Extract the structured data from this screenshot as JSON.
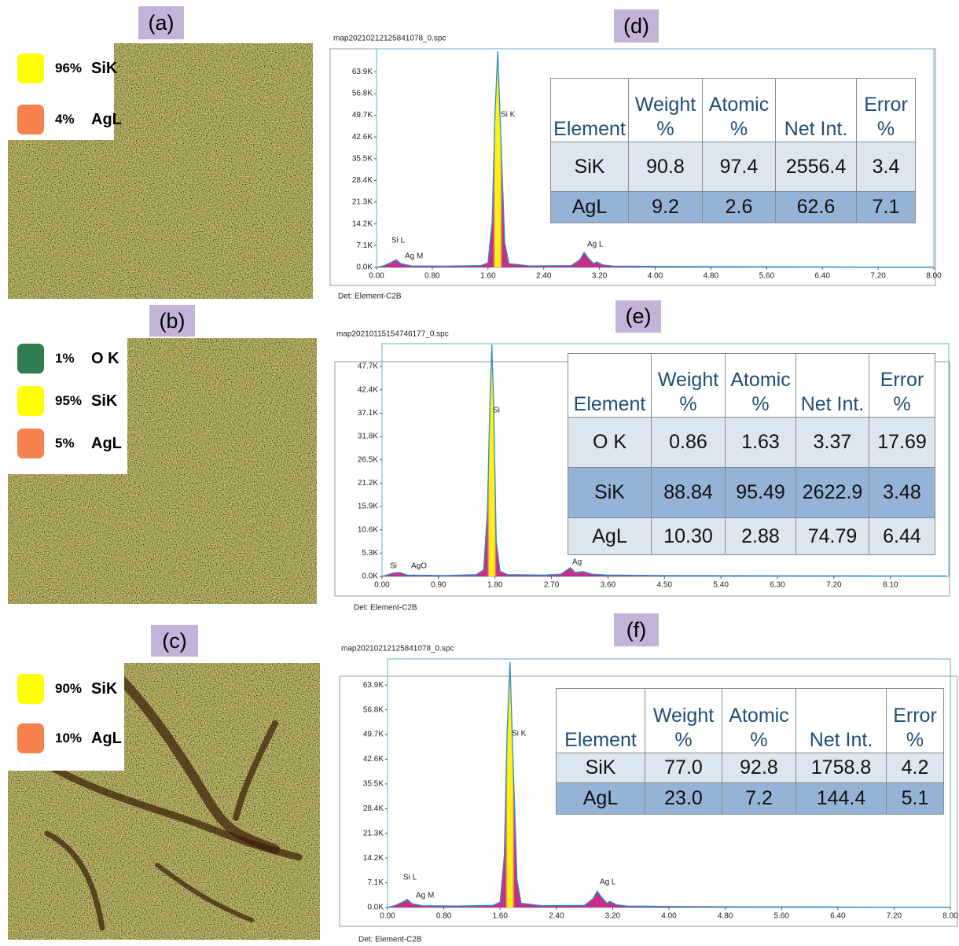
{
  "panels": [
    {
      "label": "(a)",
      "legend": [
        {
          "percent": "96%",
          "element": "SiK",
          "color": "#ffff00"
        },
        {
          "percent": "4%",
          "element": "AgL",
          "color": "#f7804f"
        }
      ]
    },
    {
      "label": "(b)",
      "legend": [
        {
          "percent": "1%",
          "element": "O K",
          "color": "#2e7d4f"
        },
        {
          "percent": "95%",
          "element": "SiK",
          "color": "#ffff00"
        },
        {
          "percent": "5%",
          "element": "AgL",
          "color": "#f7804f"
        }
      ]
    },
    {
      "label": "(c)",
      "legend": [
        {
          "percent": "90%",
          "element": "SiK",
          "color": "#ffff00"
        },
        {
          "percent": "10%",
          "element": "AgL",
          "color": "#f7804f"
        }
      ]
    }
  ],
  "chart_data": [
    {
      "type": "line",
      "label": "(d)",
      "title": "map20210212125841078_0.spc",
      "footer": "Det: Element-C2B",
      "color": "#2a8fc4",
      "fill": "#c2187a",
      "x": [
        0,
        0.1,
        0.2,
        0.28,
        0.35,
        0.5,
        1.0,
        1.5,
        1.6,
        1.66,
        1.7,
        1.74,
        1.78,
        1.84,
        1.9,
        2.2,
        2.8,
        2.92,
        2.98,
        3.04,
        3.12,
        3.16,
        3.25,
        3.4,
        4.0,
        5.0,
        6.0,
        7.0,
        8.0
      ],
      "values": [
        0,
        500,
        1500,
        2500,
        1200,
        500,
        400,
        600,
        1500,
        15000,
        50000,
        70600,
        45000,
        8000,
        1200,
        500,
        600,
        2500,
        4900,
        3000,
        1200,
        1800,
        800,
        400,
        300,
        200,
        150,
        100,
        100
      ],
      "xlim": [
        0,
        8
      ],
      "ylim": [
        0,
        71400
      ],
      "xticks": [
        {
          "value": 0,
          "label": "0.00"
        },
        {
          "value": 0.8,
          "label": "0.80"
        },
        {
          "value": 1.6,
          "label": "1.60"
        },
        {
          "value": 2.4,
          "label": "2.40"
        },
        {
          "value": 3.2,
          "label": "3.20"
        },
        {
          "value": 4,
          "label": "4.00"
        },
        {
          "value": 4.8,
          "label": "4.80"
        },
        {
          "value": 5.6,
          "label": "5.60"
        },
        {
          "value": 6.4,
          "label": "6.40"
        },
        {
          "value": 7.2,
          "label": "7.20"
        },
        {
          "value": 8,
          "label": "8.00"
        }
      ],
      "yticks": [
        {
          "value": 0,
          "label": "0.0K"
        },
        {
          "value": 7100,
          "label": "7.1K"
        },
        {
          "value": 14200,
          "label": "14.2K"
        },
        {
          "value": 21300,
          "label": "21.3K"
        },
        {
          "value": 28400,
          "label": "28.4K"
        },
        {
          "value": 35500,
          "label": "35.5K"
        },
        {
          "value": 42600,
          "label": "42.6K"
        },
        {
          "value": 49700,
          "label": "49.7K"
        },
        {
          "value": 56800,
          "label": "56.8K"
        },
        {
          "value": 63900,
          "label": "63.9K"
        }
      ],
      "peak_labels": [
        "Si K",
        "Si L",
        "Ag M",
        "Ag L"
      ],
      "table": {
        "header": [
          "Element",
          "Weight %",
          "Atomic %",
          "Net Int.",
          "Error %"
        ],
        "rows": [
          [
            "SiK",
            "90.8",
            "97.4",
            "2556.4",
            "3.4"
          ],
          [
            "AgL",
            "9.2",
            "2.6",
            "62.6",
            "7.1"
          ]
        ]
      }
    },
    {
      "type": "line",
      "label": "(e)",
      "title": "map20210115154746177_0.spc",
      "footer": "Det: Element-C2B",
      "color": "#2a8fc4",
      "fill": "#c2187a",
      "x": [
        0,
        0.1,
        0.18,
        0.28,
        0.4,
        1.0,
        1.5,
        1.62,
        1.68,
        1.72,
        1.75,
        1.78,
        1.82,
        1.88,
        2.0,
        2.6,
        2.85,
        2.95,
        3.0,
        3.08,
        3.2,
        3.35,
        3.6,
        4.5,
        6.0,
        8.0,
        9.0
      ],
      "values": [
        0,
        400,
        800,
        900,
        300,
        200,
        400,
        1500,
        15000,
        40000,
        52700,
        38000,
        8000,
        1200,
        400,
        300,
        500,
        1500,
        2000,
        900,
        1100,
        500,
        300,
        200,
        150,
        100,
        100
      ],
      "xlim": [
        0,
        9.03
      ],
      "ylim": [
        0,
        52900
      ],
      "xticks": [
        {
          "value": 0,
          "label": "0.00"
        },
        {
          "value": 0.9,
          "label": "0.90"
        },
        {
          "value": 1.8,
          "label": "1.80"
        },
        {
          "value": 2.7,
          "label": "2.70"
        },
        {
          "value": 3.6,
          "label": "3.60"
        },
        {
          "value": 4.5,
          "label": "4.50"
        },
        {
          "value": 5.4,
          "label": "5.40"
        },
        {
          "value": 6.3,
          "label": "6.30"
        },
        {
          "value": 7.2,
          "label": "7.20"
        },
        {
          "value": 8.1,
          "label": "8.10"
        }
      ],
      "yticks": [
        {
          "value": 0,
          "label": "0.0K"
        },
        {
          "value": 5300,
          "label": "5.3K"
        },
        {
          "value": 10600,
          "label": "10.6K"
        },
        {
          "value": 15900,
          "label": "15.9K"
        },
        {
          "value": 21200,
          "label": "21.2K"
        },
        {
          "value": 26500,
          "label": "26.5K"
        },
        {
          "value": 31800,
          "label": "31.8K"
        },
        {
          "value": 37100,
          "label": "37.1K"
        },
        {
          "value": 42400,
          "label": "42.4K"
        },
        {
          "value": 47700,
          "label": "47.7K"
        }
      ],
      "peak_labels": [
        "Si",
        "Si",
        "AgO",
        "Ag"
      ],
      "table": {
        "header": [
          "Element",
          "Weight %",
          "Atomic %",
          "Net Int.",
          "Error %"
        ],
        "rows": [
          [
            "O K",
            "0.86",
            "1.63",
            "3.37",
            "17.69"
          ],
          [
            "SiK",
            "88.84",
            "95.49",
            "2622.9",
            "3.48"
          ],
          [
            "AgL",
            "10.30",
            "2.88",
            "74.79",
            "6.44"
          ]
        ]
      }
    },
    {
      "type": "line",
      "label": "(f)",
      "title": "map20210212125841078_0.spc",
      "footer": "Det: Element-C2B",
      "color": "#2a8fc4",
      "fill": "#c2187a",
      "x": [
        0,
        0.1,
        0.2,
        0.28,
        0.35,
        0.5,
        1.0,
        1.5,
        1.6,
        1.66,
        1.7,
        1.74,
        1.78,
        1.84,
        1.9,
        2.2,
        2.8,
        2.92,
        2.98,
        3.04,
        3.12,
        3.16,
        3.25,
        3.4,
        4.0,
        5.0,
        6.0,
        7.0,
        8.0
      ],
      "values": [
        0,
        500,
        1400,
        2300,
        1100,
        500,
        400,
        600,
        1500,
        15000,
        50000,
        70600,
        45000,
        8000,
        1200,
        500,
        600,
        2500,
        4700,
        3000,
        1200,
        1800,
        800,
        400,
        300,
        200,
        150,
        100,
        100
      ],
      "xlim": [
        0,
        8
      ],
      "ylim": [
        0,
        71400
      ],
      "xticks": [
        {
          "value": 0,
          "label": "0.00"
        },
        {
          "value": 0.8,
          "label": "0.80"
        },
        {
          "value": 1.6,
          "label": "1.60"
        },
        {
          "value": 2.4,
          "label": "2.40"
        },
        {
          "value": 3.2,
          "label": "3.20"
        },
        {
          "value": 4,
          "label": "4.00"
        },
        {
          "value": 4.8,
          "label": "4.80"
        },
        {
          "value": 5.6,
          "label": "5.60"
        },
        {
          "value": 6.4,
          "label": "6.40"
        },
        {
          "value": 7.2,
          "label": "7.20"
        },
        {
          "value": 8,
          "label": "8.00"
        }
      ],
      "yticks": [
        {
          "value": 0,
          "label": "0.0K"
        },
        {
          "value": 7100,
          "label": "7.1K"
        },
        {
          "value": 14200,
          "label": "14.2K"
        },
        {
          "value": 21300,
          "label": "21.3K"
        },
        {
          "value": 28400,
          "label": "28.4K"
        },
        {
          "value": 35500,
          "label": "35.5K"
        },
        {
          "value": 42600,
          "label": "42.6K"
        },
        {
          "value": 49700,
          "label": "49.7K"
        },
        {
          "value": 56800,
          "label": "56.8K"
        },
        {
          "value": 63900,
          "label": "63.9K"
        }
      ],
      "peak_labels": [
        "Si K",
        "Si L",
        "Ag M",
        "Ag L"
      ],
      "table": {
        "header": [
          "Element",
          "Weight %",
          "Atomic %",
          "Net Int.",
          "Error %"
        ],
        "rows": [
          [
            "SiK",
            "77.0",
            "92.8",
            "1758.8",
            "4.2"
          ],
          [
            "AgL",
            "23.0",
            "7.2",
            "144.4",
            "5.1"
          ]
        ]
      }
    }
  ]
}
